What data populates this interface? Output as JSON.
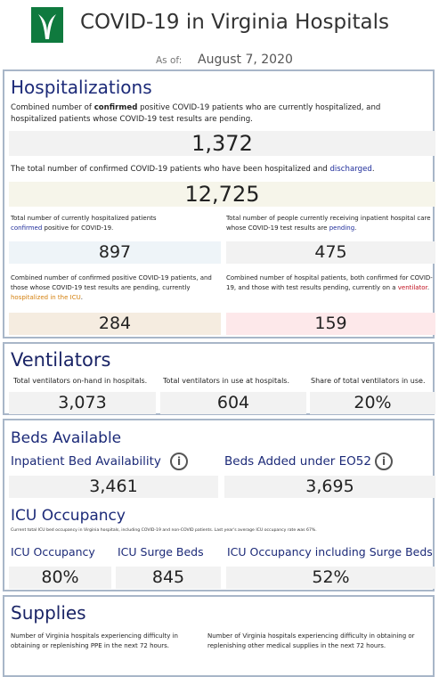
{
  "header": {
    "title": "COVID-19 in Virginia Hospitals",
    "as_of_label": "As of:",
    "as_of_date": "August 7, 2020"
  },
  "hospitalizations": {
    "title": "Hospitalizations",
    "metrics": [
      {
        "description": [
          "Combined number of ",
          "confirmed",
          " positive COVID-19 patients who are currently hospitalized, and hospitalized patients whose COVID-19 test results are pending."
        ],
        "value": "1,372"
      },
      {
        "description": [
          "The total number of confirmed COVID-19 patients who have been hospitalized and ",
          "discharged",
          "."
        ],
        "value": "12,725"
      },
      {
        "description": [
          "Total number of currently hospitalized patients ",
          "confirmed",
          " positive for COVID-19."
        ],
        "value": "897"
      },
      {
        "description": [
          "Total number of people currently receiving inpatient hospital care whose COVID-19 test results are ",
          "pending",
          "."
        ],
        "value": "475"
      },
      {
        "description": [
          "Combined number of confirmed positive COVID-19 patients, and those whose COVID-19 test results are pending, currently ",
          "hospitalized in the ICU",
          "."
        ],
        "value": "284"
      },
      {
        "description": [
          "Combined number of hospital patients, both confirmed for COVID-19, and those with test results pending, currently on a ",
          "ventilator",
          "."
        ],
        "value": "159"
      }
    ]
  },
  "ventilators": {
    "title": "Ventilators",
    "metrics": [
      {
        "label": "Total ventilators on-hand in hospitals.",
        "value": "3,073"
      },
      {
        "label": "Total ventilators in use at hospitals.",
        "value": "604"
      },
      {
        "label": "Share of total ventilators in use.",
        "value": "20%"
      }
    ]
  },
  "beds": {
    "title": "Beds Available",
    "metrics": [
      {
        "label": "Inpatient Bed Availability",
        "value": "3,461"
      },
      {
        "label": "Beds Added under EO52",
        "value": "3,695"
      }
    ]
  },
  "icu": {
    "title": "ICU Occupancy",
    "note": "Current total ICU bed occupancy in Virginia hospitals, including COVID-19 and non-COVID patients. Last year's average ICU occupancy rate was 67%.",
    "metrics": [
      {
        "label": "ICU Occupancy",
        "value": "80%"
      },
      {
        "label": "ICU Surge Beds",
        "value": "845"
      },
      {
        "label": "ICU Occupancy including Surge Beds",
        "value": "52%"
      }
    ]
  },
  "supplies": {
    "title": "Supplies",
    "descriptions": [
      "Number of Virginia hospitals experiencing difficulty in obtaining or replenishing PPE in the next 72 hours.",
      "Number of Virginia hospitals experiencing difficulty in obtaining or replenishing other medical supplies in the next 72 hours."
    ]
  }
}
